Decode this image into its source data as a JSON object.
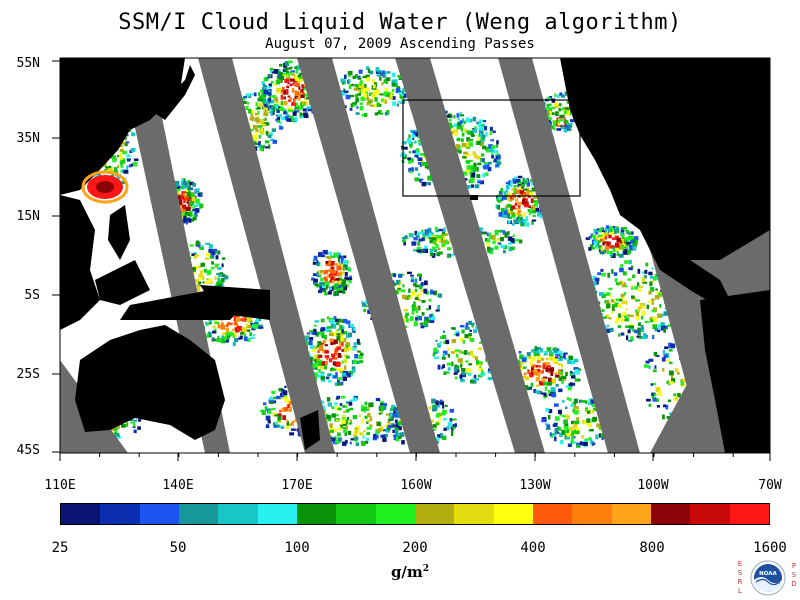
{
  "title": "SSM/I Cloud Liquid Water (Weng algorithm)",
  "subtitle": "August 07, 2009  Ascending Passes",
  "lat_labels": [
    "55N",
    "35N",
    "15N",
    "5S",
    "25S",
    "45S"
  ],
  "lon_labels": [
    "110E",
    "140E",
    "170E",
    "160W",
    "130W",
    "100W",
    "70W"
  ],
  "colorbar": {
    "colors": [
      "#0a1573",
      "#0b2eb0",
      "#1c54f0",
      "#159898",
      "#17c6c6",
      "#2af0f0",
      "#079207",
      "#12c812",
      "#20f020",
      "#b2ae10",
      "#e2dc10",
      "#ffff10",
      "#ff5a0c",
      "#ff7f0c",
      "#ffa418",
      "#8c0408",
      "#c80a0a",
      "#ff1616"
    ],
    "labels": [
      "25",
      "50",
      "100",
      "200",
      "400",
      "800",
      "1600"
    ],
    "units": "g/m",
    "units_exp": "2"
  },
  "logo": {
    "center": "NOAA",
    "left_letters": [
      "E",
      "S",
      "R",
      "L"
    ],
    "right_letters": [
      "P",
      "S",
      "D"
    ]
  }
}
